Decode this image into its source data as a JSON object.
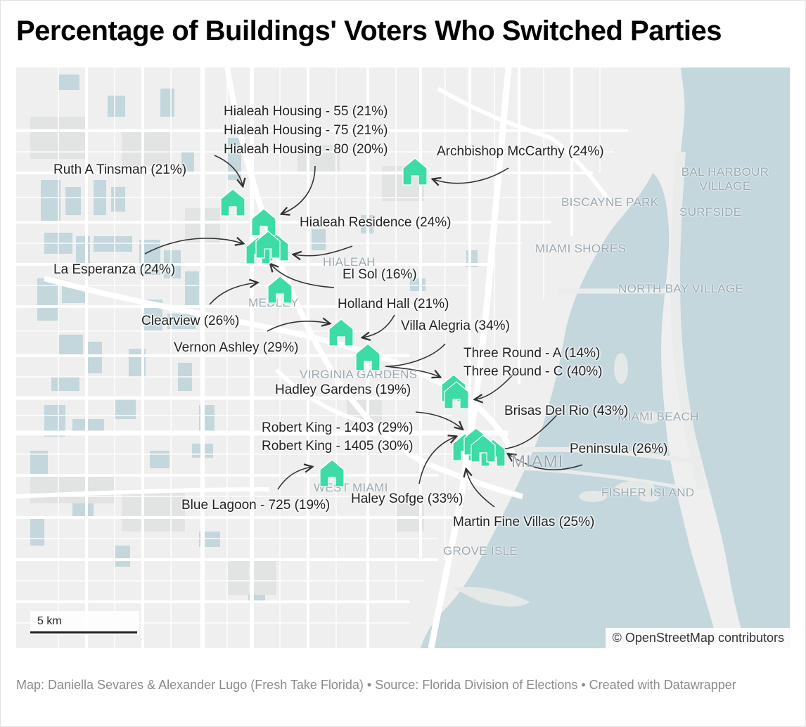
{
  "title": "Percentage of Buildings' Voters Who Switched Parties",
  "places": {
    "hialeah": "HIALEAH",
    "medley": "MEDLEY",
    "virginia_gardens": "VIRGINIA GARDENS",
    "west_miami": "WEST MIAMI",
    "miami": "MIAMI",
    "grove_isle": "GROVE ISLE",
    "fisher_island": "FISHER ISLAND",
    "miami_beach": "MIAMI BEACH",
    "north_bay_village": "NORTH BAY VILLAGE",
    "miami_shores": "MIAMI SHORES",
    "biscayne_park": "BISCAYNE PARK",
    "surfside": "SURFSIDE",
    "bal_harbour_1": "BAL HARBOUR",
    "bal_harbour_2": "VILLAGE"
  },
  "buildings": {
    "hialeah_housing_55": "Hialeah Housing - 55 (21%)",
    "hialeah_housing_75": "Hialeah Housing - 75 (21%)",
    "hialeah_housing_80": "Hialeah Housing - 80 (20%)",
    "archbishop_mccarthy": "Archbishop McCarthy (24%)",
    "ruth_a_tinsman": "Ruth A Tinsman (21%)",
    "hialeah_residence": "Hialeah Residence (24%)",
    "la_esperanza": "La Esperanza (24%)",
    "el_sol": "El Sol (16%)",
    "clearview": "Clearview (26%)",
    "holland_hall": "Holland Hall (21%)",
    "villa_alegria": "Villa Alegria (34%)",
    "vernon_ashley": "Vernon Ashley (29%)",
    "three_round_a": "Three Round - A (14%)",
    "three_round_c": "Three Round - C (40%)",
    "hadley_gardens": "Hadley Gardens (19%)",
    "brisas_del_rio": "Brisas Del Rio (43%)",
    "robert_king_1403": "Robert King - 1403 (29%)",
    "robert_king_1405": "Robert King - 1405 (30%)",
    "peninsula": "Peninsula (26%)",
    "blue_lagoon_725": "Blue Lagoon - 725 (19%)",
    "haley_sofge": "Haley Sofge (33%)",
    "martin_fine_villas": "Martin Fine Villas (25%)"
  },
  "scale_label": "5 km",
  "attribution": "© OpenStreetMap contributors",
  "footer": "Map: Daniella Sevares & Alexander Lugo (Fresh Take Florida) • Source: Florida Division of Elections • Created with Datawrapper",
  "colors": {
    "marker": "#3ddba6",
    "water": "#c3d7dd",
    "land": "#efefef",
    "road": "#ffffff",
    "title": "#000000"
  },
  "icons": {
    "marker": "house-icon",
    "scale": "scale-bar"
  }
}
